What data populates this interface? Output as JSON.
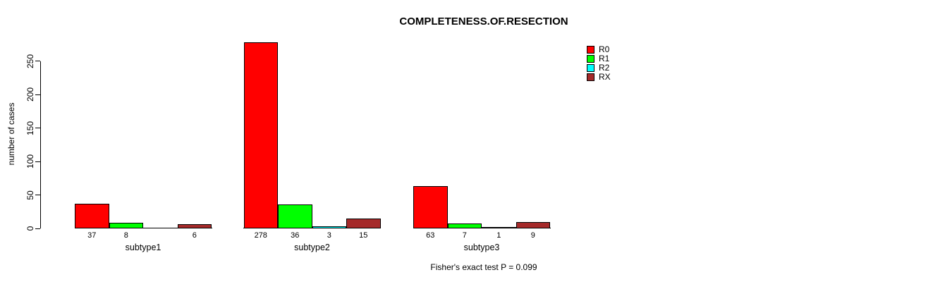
{
  "chart_data": {
    "type": "bar",
    "title": "COMPLETENESS.OF.RESECTION",
    "ylabel": "number of cases",
    "xlabel": "",
    "categories": [
      "subtype1",
      "subtype2",
      "subtype3"
    ],
    "series": [
      {
        "name": "R0",
        "color": "#ff0000",
        "values": [
          37,
          278,
          63
        ]
      },
      {
        "name": "R1",
        "color": "#00ff00",
        "values": [
          8,
          36,
          7
        ]
      },
      {
        "name": "R2",
        "color": "#00ffff",
        "values": [
          0,
          3,
          1
        ]
      },
      {
        "name": "RX",
        "color": "#a52a2a",
        "values": [
          6,
          15,
          9
        ]
      }
    ],
    "yticks": [
      0,
      50,
      100,
      150,
      200,
      250
    ],
    "ylim": [
      0,
      280
    ],
    "grid": false,
    "legend_position": "top-right",
    "bar_value_labels_shown": true,
    "zero_values_unlabeled": true,
    "annotation": "Fisher's exact test P = 0.099",
    "background_color": "#ffffff",
    "axis_color": "#000000"
  }
}
